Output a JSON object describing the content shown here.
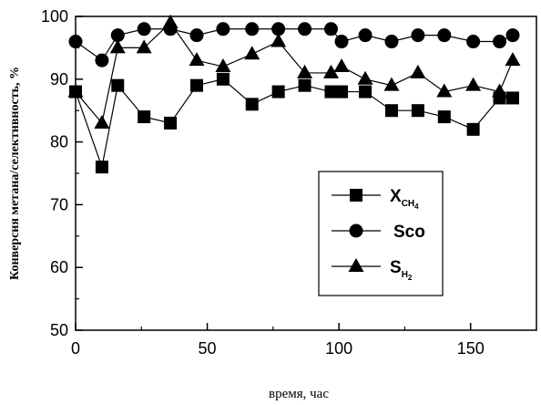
{
  "chart_data": {
    "type": "line",
    "xlabel": "время, час",
    "ylabel": "Конверсия метана/селективность, %",
    "xlim": [
      0,
      175
    ],
    "ylim": [
      50,
      100
    ],
    "xticks": [
      "0",
      "50",
      "100",
      "150"
    ],
    "yticks": [
      "50",
      "60",
      "70",
      "80",
      "90",
      "100"
    ],
    "grid": false,
    "legend_position": "center-right",
    "series": [
      {
        "key": "x-ch4",
        "marker": "square",
        "legend": {
          "main": "X",
          "sub": "CH",
          "sub2": "4"
        },
        "x": [
          0,
          10,
          16,
          26,
          36,
          46,
          56,
          67,
          77,
          87,
          97,
          101,
          110,
          120,
          130,
          140,
          151,
          161,
          166
        ],
        "y": [
          88,
          76,
          89,
          84,
          83,
          89,
          90,
          86,
          88,
          89,
          88,
          88,
          88,
          85,
          85,
          84,
          82,
          87,
          87
        ]
      },
      {
        "key": "sco",
        "marker": "circle",
        "legend": {
          "main": "Sco",
          "sub": "",
          "sub2": ""
        },
        "x": [
          0,
          10,
          16,
          26,
          36,
          46,
          56,
          67,
          77,
          87,
          97,
          101,
          110,
          120,
          130,
          140,
          151,
          161,
          166
        ],
        "y": [
          96,
          93,
          97,
          98,
          98,
          97,
          98,
          98,
          98,
          98,
          98,
          96,
          97,
          96,
          97,
          97,
          96,
          96,
          97
        ]
      },
      {
        "key": "sh2",
        "marker": "triangle",
        "legend": {
          "main": "S",
          "sub": "H",
          "sub2": "2"
        },
        "x": [
          0,
          10,
          16,
          26,
          36,
          46,
          56,
          67,
          77,
          87,
          97,
          101,
          110,
          120,
          130,
          140,
          151,
          161,
          166
        ],
        "y": [
          88,
          83,
          95,
          95,
          99,
          93,
          92,
          94,
          96,
          91,
          91,
          92,
          90,
          89,
          91,
          88,
          89,
          88,
          93
        ]
      }
    ]
  }
}
